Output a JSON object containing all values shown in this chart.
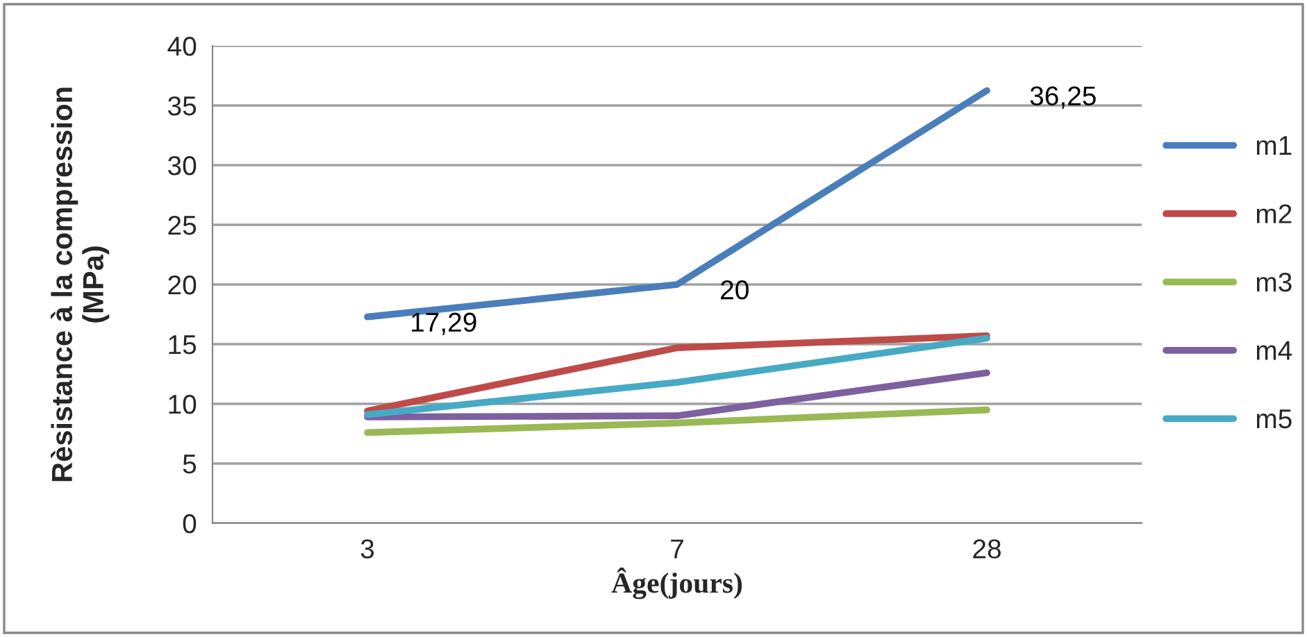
{
  "chart_data": {
    "type": "line",
    "xlabel": "Âge(jours)",
    "ylabel": "Rèsistance à la compression\n(MPa)",
    "categories": [
      "3",
      "7",
      "28"
    ],
    "series": [
      {
        "name": "m1",
        "color": "#4a7ebb",
        "values": [
          17.29,
          20,
          36.25
        ],
        "value_labels": [
          "17,29",
          "20",
          "36,25"
        ]
      },
      {
        "name": "m2",
        "color": "#be4b48",
        "values": [
          9.4,
          14.7,
          15.7
        ]
      },
      {
        "name": "m3",
        "color": "#98b954",
        "values": [
          7.6,
          8.4,
          9.5
        ]
      },
      {
        "name": "m4",
        "color": "#7d60a0",
        "values": [
          8.9,
          9.0,
          12.6
        ]
      },
      {
        "name": "m5",
        "color": "#46aac5",
        "values": [
          9.1,
          11.8,
          15.5
        ]
      }
    ],
    "ylim": [
      0,
      40
    ],
    "yticks": [
      0,
      5,
      10,
      15,
      20,
      25,
      30,
      35,
      40
    ],
    "grid": "y",
    "legend": "right",
    "marker": "none",
    "line_style": "solid"
  }
}
